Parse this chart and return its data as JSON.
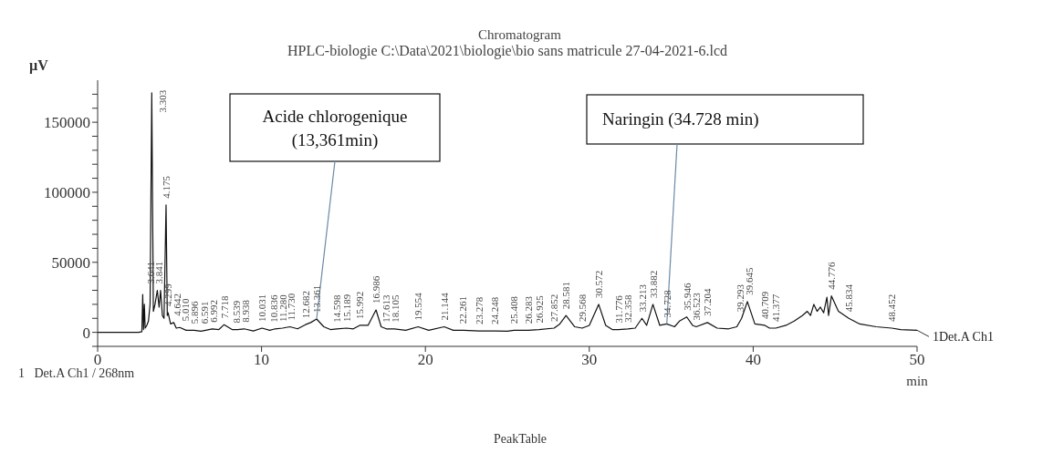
{
  "chart_data": {
    "type": "line",
    "title": "Chromatogram",
    "subtitle": "HPLC-biologie C:\\Data\\2021\\biologie\\bio sans matricule 27-04-2021-6.lcd",
    "xlabel": "min",
    "ylabel": "µV",
    "x": [
      0,
      2.5,
      2.7,
      2.75,
      2.8,
      2.85,
      2.9,
      3.0,
      3.1,
      3.2,
      3.303,
      3.4,
      3.5,
      3.641,
      3.75,
      3.841,
      3.95,
      4.05,
      4.175,
      4.25,
      4.299,
      4.45,
      4.642,
      4.8,
      5.01,
      5.4,
      5.896,
      6.3,
      6.591,
      6.992,
      7.4,
      7.718,
      8.2,
      8.539,
      8.938,
      9.5,
      10.031,
      10.5,
      10.836,
      11.28,
      11.73,
      12.2,
      12.682,
      13.0,
      13.361,
      13.8,
      14.2,
      14.598,
      15.189,
      15.6,
      15.992,
      16.5,
      16.986,
      17.3,
      17.613,
      18.105,
      18.8,
      19.554,
      20.2,
      21.144,
      21.7,
      22.261,
      23.278,
      24.248,
      25.0,
      25.408,
      26.283,
      26.925,
      27.852,
      28.2,
      28.581,
      29.1,
      29.568,
      30.0,
      30.572,
      31.0,
      31.4,
      31.776,
      32.358,
      32.8,
      33.213,
      33.5,
      33.882,
      34.3,
      34.728,
      35.2,
      35.5,
      35.946,
      36.3,
      36.523,
      37.204,
      37.8,
      38.5,
      39.0,
      39.293,
      39.645,
      40.1,
      40.709,
      41.0,
      41.377,
      42.0,
      42.5,
      43.0,
      43.3,
      43.5,
      43.7,
      43.9,
      44.1,
      44.3,
      44.5,
      44.6,
      44.776,
      45.2,
      45.834,
      46.5,
      47.5,
      48.452,
      49.0,
      50
    ],
    "series": [
      {
        "name": "1Det.A Ch1",
        "color": "#111111",
        "values": [
          0,
          0,
          500,
          27000,
          2000,
          20000,
          3000,
          5000,
          8000,
          20000,
          171000,
          15000,
          20000,
          30000,
          18000,
          30000,
          12000,
          10000,
          91000,
          12000,
          14000,
          6000,
          7000,
          3000,
          3500,
          1500,
          1500,
          800,
          1500,
          2500,
          2000,
          5500,
          2000,
          2000,
          2500,
          1000,
          3000,
          1500,
          2500,
          3000,
          4000,
          2500,
          5500,
          7000,
          9500,
          4000,
          2000,
          2500,
          3000,
          2500,
          5000,
          5000,
          16000,
          4000,
          2500,
          2500,
          1500,
          4000,
          1500,
          4000,
          1500,
          1500,
          1000,
          1000,
          800,
          1500,
          1500,
          2000,
          3000,
          6000,
          12000,
          4000,
          3000,
          5000,
          20000,
          5000,
          2000,
          2000,
          2500,
          3000,
          10000,
          5000,
          20000,
          5000,
          6000,
          4000,
          8000,
          11000,
          5000,
          4000,
          7000,
          3000,
          2500,
          4000,
          10000,
          22000,
          6000,
          5000,
          3000,
          3000,
          5000,
          8000,
          12000,
          15000,
          12000,
          20000,
          15000,
          18000,
          14000,
          25000,
          12000,
          26000,
          15000,
          10000,
          6000,
          4000,
          3000,
          2000,
          1500
        ]
      }
    ],
    "xlim": [
      0,
      50
    ],
    "xticks": [
      0,
      10,
      20,
      30,
      40,
      50
    ],
    "ylim": [
      -10000,
      180000
    ],
    "yticks": [
      {
        "value": -10000,
        "label": null
      },
      0,
      {
        "value": 10000,
        "label": null
      },
      {
        "value": 20000,
        "label": null
      },
      {
        "value": 30000,
        "label": null
      },
      {
        "value": 40000,
        "label": null
      },
      50000,
      {
        "value": 60000,
        "label": null
      },
      {
        "value": 70000,
        "label": null
      },
      {
        "value": 80000,
        "label": null
      },
      {
        "value": 90000,
        "label": null
      },
      100000,
      {
        "value": 110000,
        "label": null
      },
      {
        "value": 120000,
        "label": null
      },
      {
        "value": 130000,
        "label": null
      },
      {
        "value": 140000,
        "label": null
      },
      150000,
      {
        "value": 160000,
        "label": null
      },
      {
        "value": 170000,
        "label": null
      }
    ],
    "annotations": [
      {
        "text": "Acide chlorogenique\n(13,361min)",
        "x": 13.361,
        "y": 9500
      },
      {
        "text": "Naringin (34.728 min)",
        "x": 34.728,
        "y": 6000
      },
      {
        "text": "3.303",
        "x": 3.303,
        "y": 171000
      },
      {
        "text": "3.641",
        "x": 3.641,
        "y": 30000
      },
      {
        "text": "3.841",
        "x": 3.841,
        "y": 30000
      },
      {
        "text": "4.175",
        "x": 4.175,
        "y": 91000
      },
      {
        "text": "4.299",
        "x": 4.299,
        "y": 14000
      },
      {
        "text": "4.642",
        "x": 4.642,
        "y": 7000
      },
      {
        "text": "5.010",
        "x": 5.01,
        "y": 3500
      },
      {
        "text": "5.896",
        "x": 5.896,
        "y": 1500
      },
      {
        "text": "6.591",
        "x": 6.591,
        "y": 1500
      },
      {
        "text": "6.992",
        "x": 6.992,
        "y": 2500
      },
      {
        "text": "7.718",
        "x": 7.718,
        "y": 5500
      },
      {
        "text": "8.539",
        "x": 8.539,
        "y": 2000
      },
      {
        "text": "8.938",
        "x": 8.938,
        "y": 2500
      },
      {
        "text": "10.031",
        "x": 10.031,
        "y": 3000
      },
      {
        "text": "10.836",
        "x": 10.836,
        "y": 2500
      },
      {
        "text": "11.280",
        "x": 11.28,
        "y": 3000
      },
      {
        "text": "11.730",
        "x": 11.73,
        "y": 4000
      },
      {
        "text": "12.682",
        "x": 12.682,
        "y": 5500
      },
      {
        "text": "13.361",
        "x": 13.361,
        "y": 9500
      },
      {
        "text": "14.598",
        "x": 14.598,
        "y": 2500
      },
      {
        "text": "15.189",
        "x": 15.189,
        "y": 3000
      },
      {
        "text": "15.992",
        "x": 15.992,
        "y": 5000
      },
      {
        "text": "16.986",
        "x": 16.986,
        "y": 16000
      },
      {
        "text": "17.613",
        "x": 17.613,
        "y": 2500
      },
      {
        "text": "18.105",
        "x": 18.105,
        "y": 2500
      },
      {
        "text": "19.554",
        "x": 19.554,
        "y": 4000
      },
      {
        "text": "21.144",
        "x": 21.144,
        "y": 4000
      },
      {
        "text": "22.261",
        "x": 22.261,
        "y": 1500
      },
      {
        "text": "23.278",
        "x": 23.278,
        "y": 1000
      },
      {
        "text": "24.248",
        "x": 24.248,
        "y": 1000
      },
      {
        "text": "25.408",
        "x": 25.408,
        "y": 1500
      },
      {
        "text": "26.283",
        "x": 26.283,
        "y": 1500
      },
      {
        "text": "26.925",
        "x": 26.925,
        "y": 2000
      },
      {
        "text": "27.852",
        "x": 27.852,
        "y": 3000
      },
      {
        "text": "28.581",
        "x": 28.581,
        "y": 12000
      },
      {
        "text": "29.568",
        "x": 29.568,
        "y": 3000
      },
      {
        "text": "30.572",
        "x": 30.572,
        "y": 20000
      },
      {
        "text": "31.776",
        "x": 31.776,
        "y": 2000
      },
      {
        "text": "32.358",
        "x": 32.358,
        "y": 2500
      },
      {
        "text": "33.213",
        "x": 33.213,
        "y": 10000
      },
      {
        "text": "33.882",
        "x": 33.882,
        "y": 20000
      },
      {
        "text": "34.728",
        "x": 34.728,
        "y": 6000
      },
      {
        "text": "35.946",
        "x": 35.946,
        "y": 11000
      },
      {
        "text": "36.523",
        "x": 36.523,
        "y": 4000
      },
      {
        "text": "37.204",
        "x": 37.204,
        "y": 7000
      },
      {
        "text": "39.293",
        "x": 39.293,
        "y": 10000
      },
      {
        "text": "39.645",
        "x": 39.645,
        "y": 22000
      },
      {
        "text": "40.709",
        "x": 40.709,
        "y": 5000
      },
      {
        "text": "41.377",
        "x": 41.377,
        "y": 3000
      },
      {
        "text": "44.776",
        "x": 44.776,
        "y": 26000
      },
      {
        "text": "45.834",
        "x": 45.834,
        "y": 10000
      },
      {
        "text": "48.452",
        "x": 48.452,
        "y": 3000
      },
      "1   Det.A Ch1 / 268nm",
      "PeakTable"
    ]
  }
}
